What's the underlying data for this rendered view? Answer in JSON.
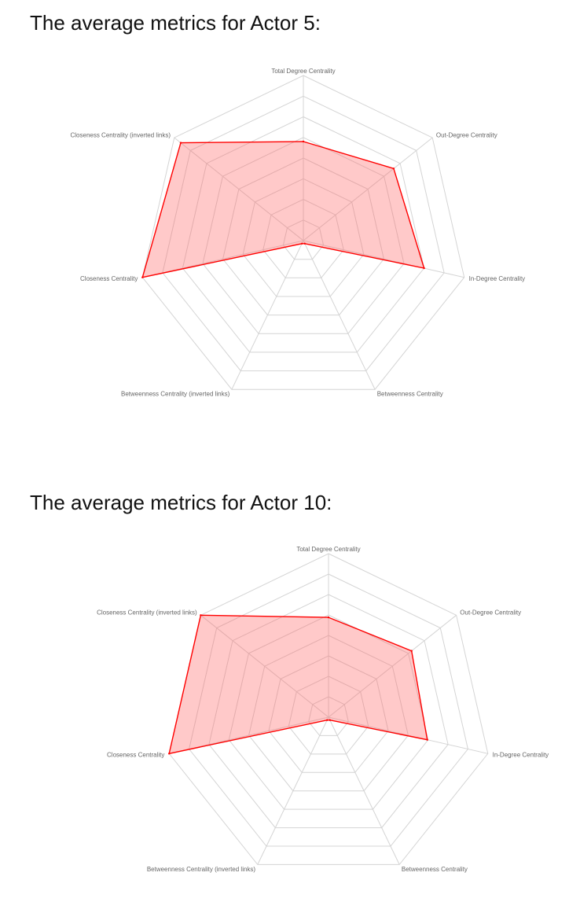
{
  "headings": {
    "actor5": "The average metrics for Actor 5:",
    "actor10": "The average metrics for Actor 10:"
  },
  "colors": {
    "series_stroke": "#ff0000",
    "series_fill": "rgba(255,99,99,0.35)",
    "grid": "#d4d4d4",
    "label": "#666666"
  },
  "chart_data": [
    {
      "type": "radar",
      "categories": [
        "Total Degree Centrality",
        "Out-Degree Centrality",
        "In-Degree Centrality",
        "Betweenness Centrality",
        "Betweenness Centrality (inverted links)",
        "Closeness Centrality",
        "Closeness Centrality (inverted links)"
      ],
      "series": [
        {
          "values": [
            0.6,
            0.7,
            0.75,
            0.02,
            0.02,
            1.0,
            0.95
          ]
        }
      ],
      "range": [
        0,
        1
      ],
      "grid": true
    },
    {
      "type": "radar",
      "categories": [
        "Total Degree Centrality",
        "Out-Degree Centrality",
        "In-Degree Centrality",
        "Betweenness Centrality",
        "Betweenness Centrality (inverted links)",
        "Closeness Centrality",
        "Closeness Centrality (inverted links)"
      ],
      "series": [
        {
          "values": [
            0.61,
            0.65,
            0.62,
            0.02,
            0.02,
            1.0,
            1.0
          ]
        }
      ],
      "range": [
        0,
        1
      ],
      "grid": true
    }
  ]
}
